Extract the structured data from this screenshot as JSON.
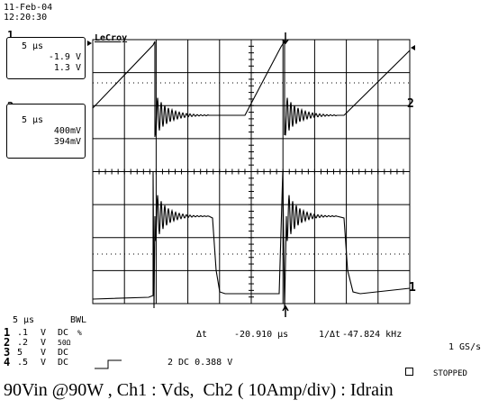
{
  "header": {
    "date": "11-Feb-04",
    "time": "12:20:30"
  },
  "brand": "LeCroy",
  "channel_boxes": [
    {
      "num": "1",
      "timebase": "5 µs",
      "line1": "-1.9 V",
      "line2": "1.3 V"
    },
    {
      "num": "2",
      "timebase": "5 µs",
      "line1": "400mV",
      "line2": "394mV"
    }
  ],
  "trace_markers": {
    "ch2_right": "2",
    "ch1_right": "1"
  },
  "bottom": {
    "timebase": "5 µs",
    "bwl": "BWL",
    "channels": [
      {
        "num": "1",
        "scale": ".1",
        "unit": "V",
        "coupling": "DC",
        "extra": "%"
      },
      {
        "num": "2",
        "scale": ".2",
        "unit": "V",
        "coupling": "50Ω",
        "extra": ""
      },
      {
        "num": "3",
        "scale": "5",
        "unit": "V",
        "coupling": "DC",
        "extra": ""
      },
      {
        "num": "4",
        "scale": ".5",
        "unit": "V",
        "coupling": "DC",
        "extra": ""
      }
    ],
    "delta_t_label": "Δt",
    "delta_t_value": "-20.910 µs",
    "freq_label": "1/Δt",
    "freq_value": "-47.824 kHz",
    "trigger": "2 DC 0.388 V",
    "sample_rate": "1 GS/s",
    "status": "STOPPED"
  },
  "caption": "90Vin @90W , Ch1 : Vds,  Ch2 ( 10Amp/div) : Idrain"
}
